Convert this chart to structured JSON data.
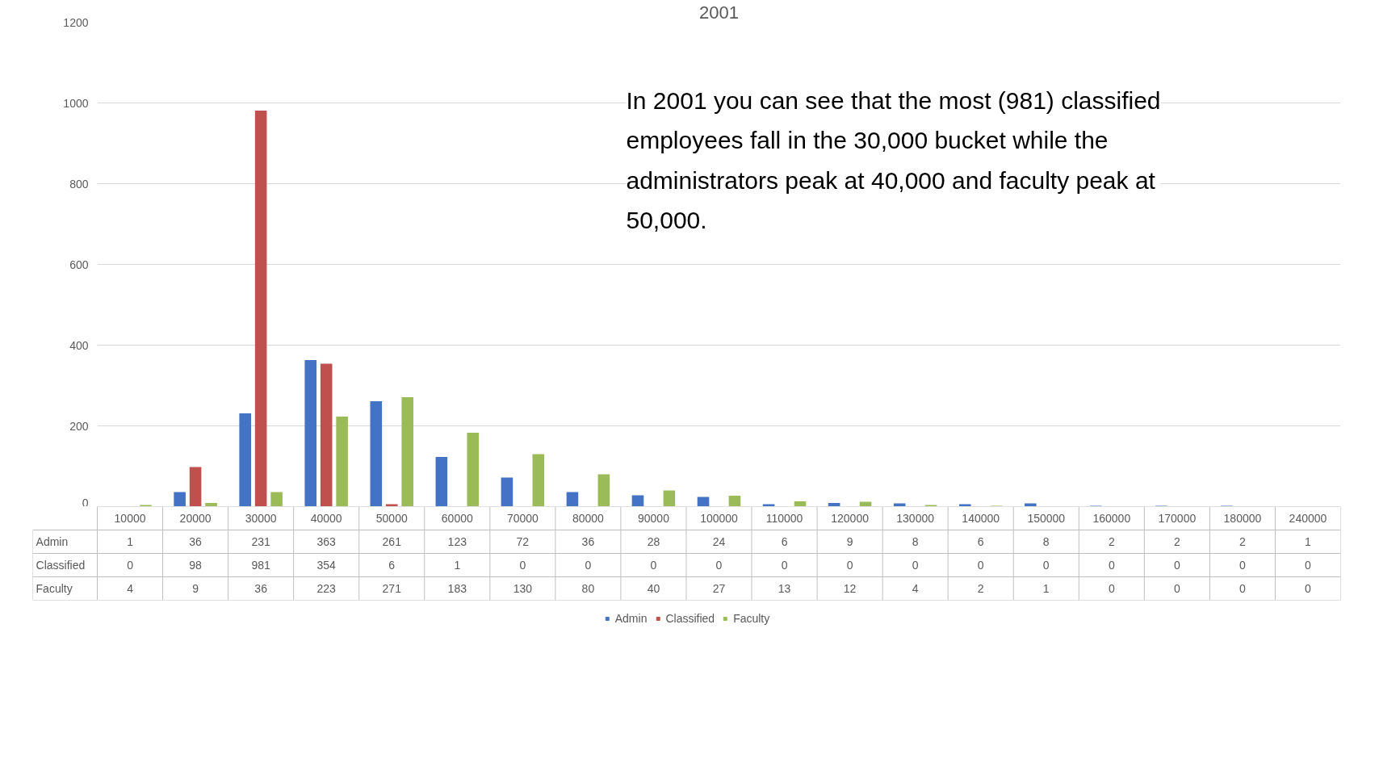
{
  "chart_data": {
    "type": "bar",
    "title": "2001",
    "categories": [
      "10000",
      "20000",
      "30000",
      "40000",
      "50000",
      "60000",
      "70000",
      "80000",
      "90000",
      "100000",
      "110000",
      "120000",
      "130000",
      "140000",
      "150000",
      "160000",
      "170000",
      "180000",
      "240000"
    ],
    "series": [
      {
        "name": "Admin",
        "color": "#4472c4",
        "values": [
          1,
          36,
          231,
          363,
          261,
          123,
          72,
          36,
          28,
          24,
          6,
          9,
          8,
          6,
          8,
          2,
          2,
          2,
          1
        ]
      },
      {
        "name": "Classified",
        "color": "#c0504d",
        "values": [
          0,
          98,
          981,
          354,
          6,
          1,
          0,
          0,
          0,
          0,
          0,
          0,
          0,
          0,
          0,
          0,
          0,
          0,
          0
        ]
      },
      {
        "name": "Faculty",
        "color": "#9bbb59",
        "values": [
          4,
          9,
          36,
          223,
          271,
          183,
          130,
          80,
          40,
          27,
          13,
          12,
          4,
          2,
          1,
          0,
          0,
          0,
          0
        ]
      }
    ],
    "ylim": [
      0,
      1200
    ],
    "yticks": [
      0,
      200,
      400,
      600,
      800,
      1000,
      1200
    ],
    "grid": "y",
    "legend": "bottom",
    "data_labels": true,
    "annotations": [
      "In 2001 you can see that the most (981) classified employees fall in the 30,000 bucket while the administrators peak at 40,000 and faculty peak at 50,000."
    ]
  }
}
